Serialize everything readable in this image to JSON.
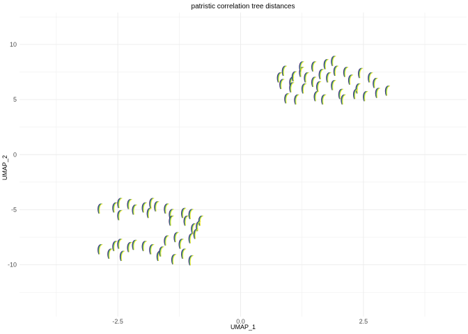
{
  "chart_data": {
    "type": "scatter",
    "title": "patristic correlation tree distances",
    "xlabel": "UMAP_1",
    "ylabel": "UMAP_2",
    "xlim": [
      -4.5,
      4.6
    ],
    "ylim": [
      -14.7,
      12.9
    ],
    "x_ticks": [
      -2.5,
      0.0,
      2.5
    ],
    "x_tick_labels": [
      "-2.5",
      "0.0",
      "2.5"
    ],
    "y_ticks": [
      -10,
      -5,
      0,
      5,
      10
    ],
    "y_tick_labels": [
      "-10",
      "-5",
      "0",
      "5",
      "10"
    ],
    "grid": true,
    "legend": "none",
    "marker": "tree-curve",
    "colors": [
      "#440154",
      "#3b528b",
      "#21918c",
      "#5ec962",
      "#fde725"
    ],
    "series": [
      {
        "values": [
          [
            0.75,
            7.0
          ],
          [
            0.85,
            7.6
          ],
          [
            0.8,
            6.4
          ],
          [
            1.0,
            6.6
          ],
          [
            1.05,
            7.1
          ],
          [
            1.2,
            7.5
          ],
          [
            1.25,
            6.0
          ],
          [
            1.3,
            7.0
          ],
          [
            1.45,
            8.0
          ],
          [
            1.45,
            6.6
          ],
          [
            1.6,
            7.3
          ],
          [
            1.55,
            6.2
          ],
          [
            1.75,
            7.0
          ],
          [
            1.85,
            6.3
          ],
          [
            1.9,
            7.6
          ],
          [
            1.85,
            8.5
          ],
          [
            2.1,
            7.5
          ],
          [
            2.2,
            6.8
          ],
          [
            2.35,
            6.0
          ],
          [
            2.4,
            7.4
          ],
          [
            2.6,
            7.0
          ],
          [
            2.7,
            6.5
          ],
          [
            2.95,
            5.8
          ],
          [
            1.2,
            8.0
          ],
          [
            0.9,
            5.1
          ],
          [
            1.1,
            5.0
          ],
          [
            1.5,
            5.3
          ],
          [
            2.0,
            5.5
          ],
          [
            2.05,
            5.0
          ],
          [
            2.5,
            5.3
          ],
          [
            2.75,
            5.6
          ],
          [
            1.65,
            5.0
          ],
          [
            1.0,
            6.1
          ],
          [
            1.7,
            8.2
          ],
          [
            2.3,
            5.5
          ]
        ]
      },
      {
        "values": [
          [
            -2.9,
            -4.9
          ],
          [
            -2.6,
            -4.8
          ],
          [
            -2.5,
            -4.4
          ],
          [
            -2.3,
            -4.5
          ],
          [
            -2.2,
            -5.0
          ],
          [
            -2.0,
            -4.8
          ],
          [
            -1.85,
            -4.4
          ],
          [
            -1.75,
            -4.7
          ],
          [
            -2.5,
            -5.5
          ],
          [
            -1.9,
            -5.3
          ],
          [
            -1.45,
            -5.4
          ],
          [
            -1.2,
            -5.3
          ],
          [
            -1.05,
            -5.4
          ],
          [
            -1.15,
            -6.0
          ],
          [
            -0.85,
            -6.0
          ],
          [
            -1.0,
            -6.7
          ],
          [
            -1.45,
            -6.0
          ],
          [
            -0.9,
            -6.5
          ],
          [
            -2.9,
            -8.6
          ],
          [
            -2.6,
            -8.3
          ],
          [
            -2.5,
            -8.1
          ],
          [
            -2.3,
            -8.4
          ],
          [
            -2.2,
            -8.2
          ],
          [
            -2.0,
            -8.3
          ],
          [
            -1.85,
            -8.6
          ],
          [
            -1.7,
            -9.2
          ],
          [
            -1.55,
            -7.8
          ],
          [
            -1.35,
            -7.5
          ],
          [
            -1.25,
            -8.1
          ],
          [
            -1.05,
            -7.6
          ],
          [
            -1.2,
            -9.0
          ],
          [
            -1.4,
            -9.5
          ],
          [
            -1.05,
            -9.6
          ],
          [
            -2.7,
            -9.0
          ],
          [
            -2.45,
            -9.2
          ],
          [
            -1.65,
            -8.8
          ],
          [
            -1.55,
            -4.9
          ],
          [
            -0.95,
            -7.2
          ]
        ]
      }
    ]
  }
}
